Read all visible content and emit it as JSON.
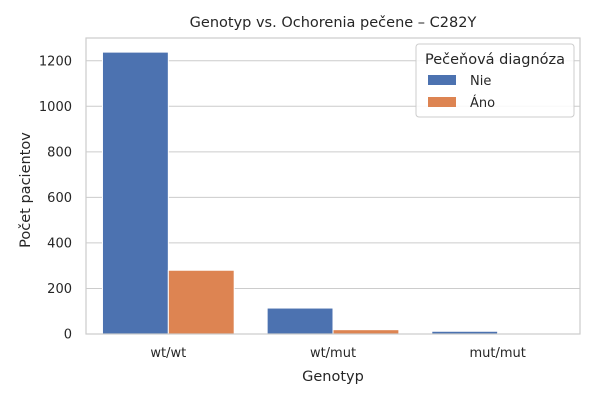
{
  "chart_data": {
    "type": "bar",
    "title": "Genotyp vs. Ochorenia pečene – C282Y",
    "xlabel": "Genotyp",
    "ylabel": "Počet pacientov",
    "categories": [
      "wt/wt",
      "wt/mut",
      "mut/mut"
    ],
    "series": [
      {
        "name": "Nie",
        "color": "#4c72b0",
        "values": [
          1238,
          114,
          12
        ]
      },
      {
        "name": "Áno",
        "color": "#dd8452",
        "values": [
          280,
          19,
          2
        ]
      }
    ],
    "ylim": [
      0,
      1300
    ],
    "yticks": [
      0,
      200,
      400,
      600,
      800,
      1000,
      1200
    ],
    "grid": "horizontal",
    "legend": {
      "title": "Pečeňová diagnóza",
      "position": "top-right"
    }
  }
}
